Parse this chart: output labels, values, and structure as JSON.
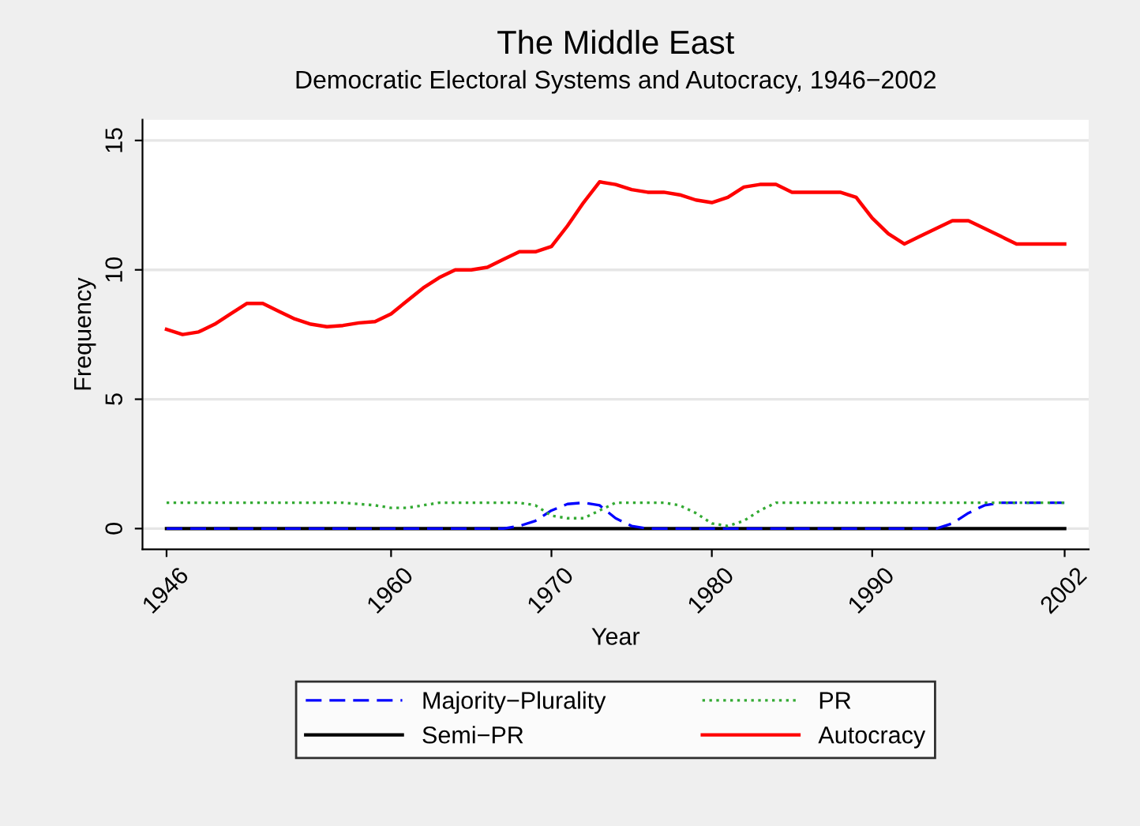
{
  "chart_data": {
    "type": "line",
    "title": "The Middle East",
    "subtitle": "Democratic Electoral Systems and Autocracy, 1946−2002",
    "xlabel": "Year",
    "ylabel": "Frequency",
    "x": [
      1946,
      1947,
      1948,
      1949,
      1950,
      1951,
      1952,
      1953,
      1954,
      1955,
      1956,
      1957,
      1958,
      1959,
      1960,
      1961,
      1962,
      1963,
      1964,
      1965,
      1966,
      1967,
      1968,
      1969,
      1970,
      1971,
      1972,
      1973,
      1974,
      1975,
      1976,
      1977,
      1978,
      1979,
      1980,
      1981,
      1982,
      1983,
      1984,
      1985,
      1986,
      1987,
      1988,
      1989,
      1990,
      1991,
      1992,
      1993,
      1994,
      1995,
      1996,
      1997,
      1998,
      1999,
      2000,
      2001,
      2002
    ],
    "series": [
      {
        "name": "Majority−Plurality",
        "color": "#0000ff",
        "line_style": "dashed",
        "values": [
          0,
          0,
          0,
          0,
          0,
          0,
          0,
          0,
          0,
          0,
          0,
          0,
          0,
          0,
          0,
          0,
          0,
          0,
          0,
          0,
          0,
          0,
          0.1,
          0.3,
          0.7,
          0.95,
          1,
          0.9,
          0.4,
          0.1,
          0,
          0,
          0,
          0,
          0,
          0,
          0,
          0,
          0,
          0,
          0,
          0,
          0,
          0,
          0,
          0,
          0,
          0,
          0,
          0.2,
          0.6,
          0.9,
          1,
          1,
          1,
          1,
          1
        ]
      },
      {
        "name": "Semi−PR",
        "color": "#000000",
        "line_style": "solid",
        "values": [
          0,
          0,
          0,
          0,
          0,
          0,
          0,
          0,
          0,
          0,
          0,
          0,
          0,
          0,
          0,
          0,
          0,
          0,
          0,
          0,
          0,
          0,
          0,
          0,
          0,
          0,
          0,
          0,
          0,
          0,
          0,
          0,
          0,
          0,
          0,
          0,
          0,
          0,
          0,
          0,
          0,
          0,
          0,
          0,
          0,
          0,
          0,
          0,
          0,
          0,
          0,
          0,
          0,
          0,
          0,
          0,
          0
        ]
      },
      {
        "name": "PR",
        "color": "#33aa33",
        "line_style": "dotted",
        "values": [
          1,
          1,
          1,
          1,
          1,
          1,
          1,
          1,
          1,
          1,
          1,
          1,
          0.95,
          0.9,
          0.8,
          0.8,
          0.9,
          1,
          1,
          1,
          1,
          1,
          1,
          0.9,
          0.5,
          0.4,
          0.4,
          0.7,
          1,
          1,
          1,
          1,
          0.9,
          0.6,
          0.2,
          0.1,
          0.3,
          0.7,
          1,
          1,
          1,
          1,
          1,
          1,
          1,
          1,
          1,
          1,
          1,
          1,
          1,
          1,
          1,
          1,
          1,
          1,
          1
        ]
      },
      {
        "name": "Autocracy",
        "color": "#ff0000",
        "line_style": "solid",
        "values": [
          7.7,
          7.5,
          7.6,
          7.9,
          8.3,
          8.7,
          8.7,
          8.4,
          8.1,
          7.9,
          7.8,
          7.85,
          7.95,
          8.0,
          8.3,
          8.8,
          9.3,
          9.7,
          10,
          10,
          10.1,
          10.4,
          10.7,
          10.7,
          10.9,
          11.7,
          12.6,
          13.4,
          13.3,
          13.1,
          13.0,
          13.0,
          12.9,
          12.7,
          12.6,
          12.8,
          13.2,
          13.3,
          13.3,
          13.0,
          13.0,
          13.0,
          13.0,
          12.8,
          12.0,
          11.4,
          11.0,
          11.3,
          11.6,
          11.9,
          11.9,
          11.6,
          11.3,
          11.0,
          11.0,
          11.0,
          11.0
        ]
      }
    ],
    "xlim": [
      1944.5,
      2003.5
    ],
    "ylim": [
      -0.8,
      15.8
    ],
    "xticks": [
      1946,
      1960,
      1970,
      1980,
      1990,
      2002
    ],
    "yticks": [
      0,
      5,
      10,
      15
    ],
    "grid": "y",
    "legend": "bottom"
  }
}
